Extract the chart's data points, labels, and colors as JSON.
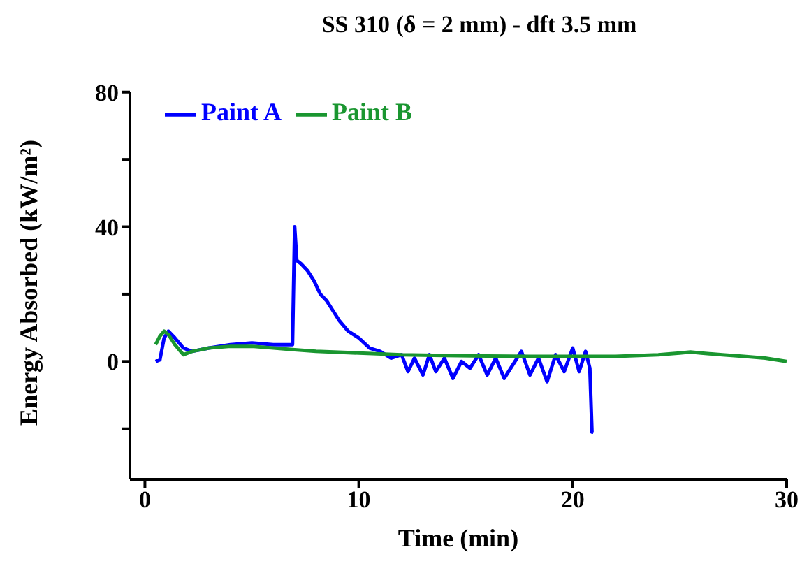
{
  "chart_data": {
    "type": "line",
    "title": "SS 310 (δ = 2 mm) - dft 3.5 mm",
    "xlabel": "Time (min)",
    "ylabel": "Energy Absorbed (kW/m²)",
    "xlim": [
      -0.7,
      30
    ],
    "xticks": [
      0,
      10,
      20,
      30
    ],
    "ylim": [
      -35,
      80
    ],
    "yticks": [
      {
        "value": -20,
        "label": null
      },
      0,
      {
        "value": 20,
        "label": null
      },
      40,
      {
        "value": 60,
        "label": null
      },
      80
    ],
    "legend": "top left",
    "marker": "none",
    "line_style": "solid",
    "series": [
      {
        "name": "Paint A",
        "color": "#0000ff",
        "x": [
          0.5,
          0.7,
          0.9,
          1.1,
          1.4,
          1.8,
          2.2,
          3,
          4,
          5,
          6,
          6.9,
          7.0,
          7.1,
          7.3,
          7.6,
          7.9,
          8.2,
          8.5,
          8.8,
          9.1,
          9.5,
          10,
          10.5,
          11,
          11.5,
          12,
          12.3,
          12.6,
          13,
          13.3,
          13.6,
          14,
          14.4,
          14.8,
          15.2,
          15.6,
          16,
          16.4,
          16.8,
          17.2,
          17.6,
          18,
          18.4,
          18.8,
          19.2,
          19.6,
          20,
          20.3,
          20.6,
          20.8,
          20.9,
          20.95
        ],
        "values": [
          0,
          0.5,
          7,
          9,
          7,
          4,
          3,
          4,
          5,
          5.5,
          5,
          5,
          40,
          30,
          29,
          27,
          24,
          20,
          18,
          15,
          12,
          9,
          7,
          4,
          3,
          1,
          2,
          -3,
          1,
          -4,
          2,
          -3,
          1,
          -5,
          0,
          -2,
          2,
          -4,
          1,
          -5,
          -1,
          3,
          -4,
          1,
          -6,
          2,
          -3,
          4,
          -3,
          3,
          -2,
          -21,
          -21
        ]
      },
      {
        "name": "Paint B",
        "color": "#1a9630",
        "x": [
          0.5,
          0.7,
          0.9,
          1.1,
          1.4,
          1.8,
          2.2,
          3,
          4,
          5,
          6,
          7,
          8,
          10,
          12,
          14,
          16,
          18,
          20,
          22,
          24,
          25,
          25.5,
          26,
          27,
          28,
          29,
          30
        ],
        "values": [
          5,
          7.5,
          9,
          8,
          5,
          2,
          3,
          4,
          4.5,
          4.5,
          4,
          3.5,
          3,
          2.5,
          2,
          1.8,
          1.6,
          1.5,
          1.5,
          1.5,
          2,
          2.5,
          2.8,
          2.5,
          2,
          1.5,
          1,
          0
        ]
      }
    ]
  }
}
